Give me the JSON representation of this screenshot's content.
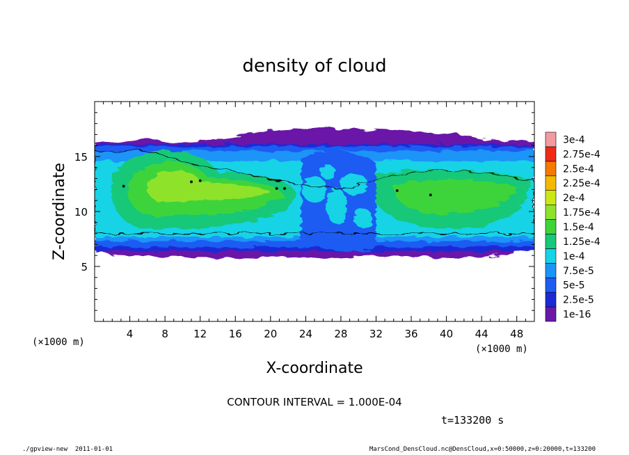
{
  "chart_data": {
    "type": "heatmap",
    "title": "density of cloud",
    "xlabel": "X-coordinate",
    "ylabel": "Z-coordinate",
    "x_unit": "(×1000 m)",
    "y_unit": "(×1000 m)",
    "xlim": [
      0,
      50
    ],
    "ylim": [
      0,
      20
    ],
    "x_ticks": [
      4,
      8,
      12,
      16,
      20,
      24,
      28,
      32,
      36,
      40,
      44,
      48
    ],
    "y_ticks": [
      5,
      10,
      15
    ],
    "colorbar": {
      "labels": [
        "1e-16",
        "2.5e-5",
        "5e-5",
        "7.5e-5",
        "1e-4",
        "1.25e-4",
        "1.5e-4",
        "1.75e-4",
        "2e-4",
        "2.25e-4",
        "2.5e-4",
        "2.75e-4",
        "3e-4"
      ],
      "colors": [
        "#6a18a8",
        "#1c2ad6",
        "#1e5cf2",
        "#1b94f8",
        "#16d3e6",
        "#17c878",
        "#3ed43a",
        "#8fe22c",
        "#c9e816",
        "#f4b800",
        "#f47a00",
        "#ee2a14",
        "#f29aa0"
      ]
    },
    "contour_interval": "CONTOUR INTERVAL = 1.000E-04",
    "time_label": "t=133200 s",
    "cloud_layer": {
      "bottom_km": 6,
      "top_km": 16.5,
      "contour_level": "1e-4",
      "contour_bottom_km": 8,
      "contour_top_km": [
        15.5,
        15.6,
        14.3,
        13.5,
        12.6,
        12.0,
        13.2,
        13.8,
        13.5,
        12.8
      ]
    }
  },
  "footer": {
    "left": "./gpview-new  2011-01-01",
    "right": "MarsCond_DensCloud.nc@DensCloud,x=0:50000,z=0:20000,t=133200"
  }
}
